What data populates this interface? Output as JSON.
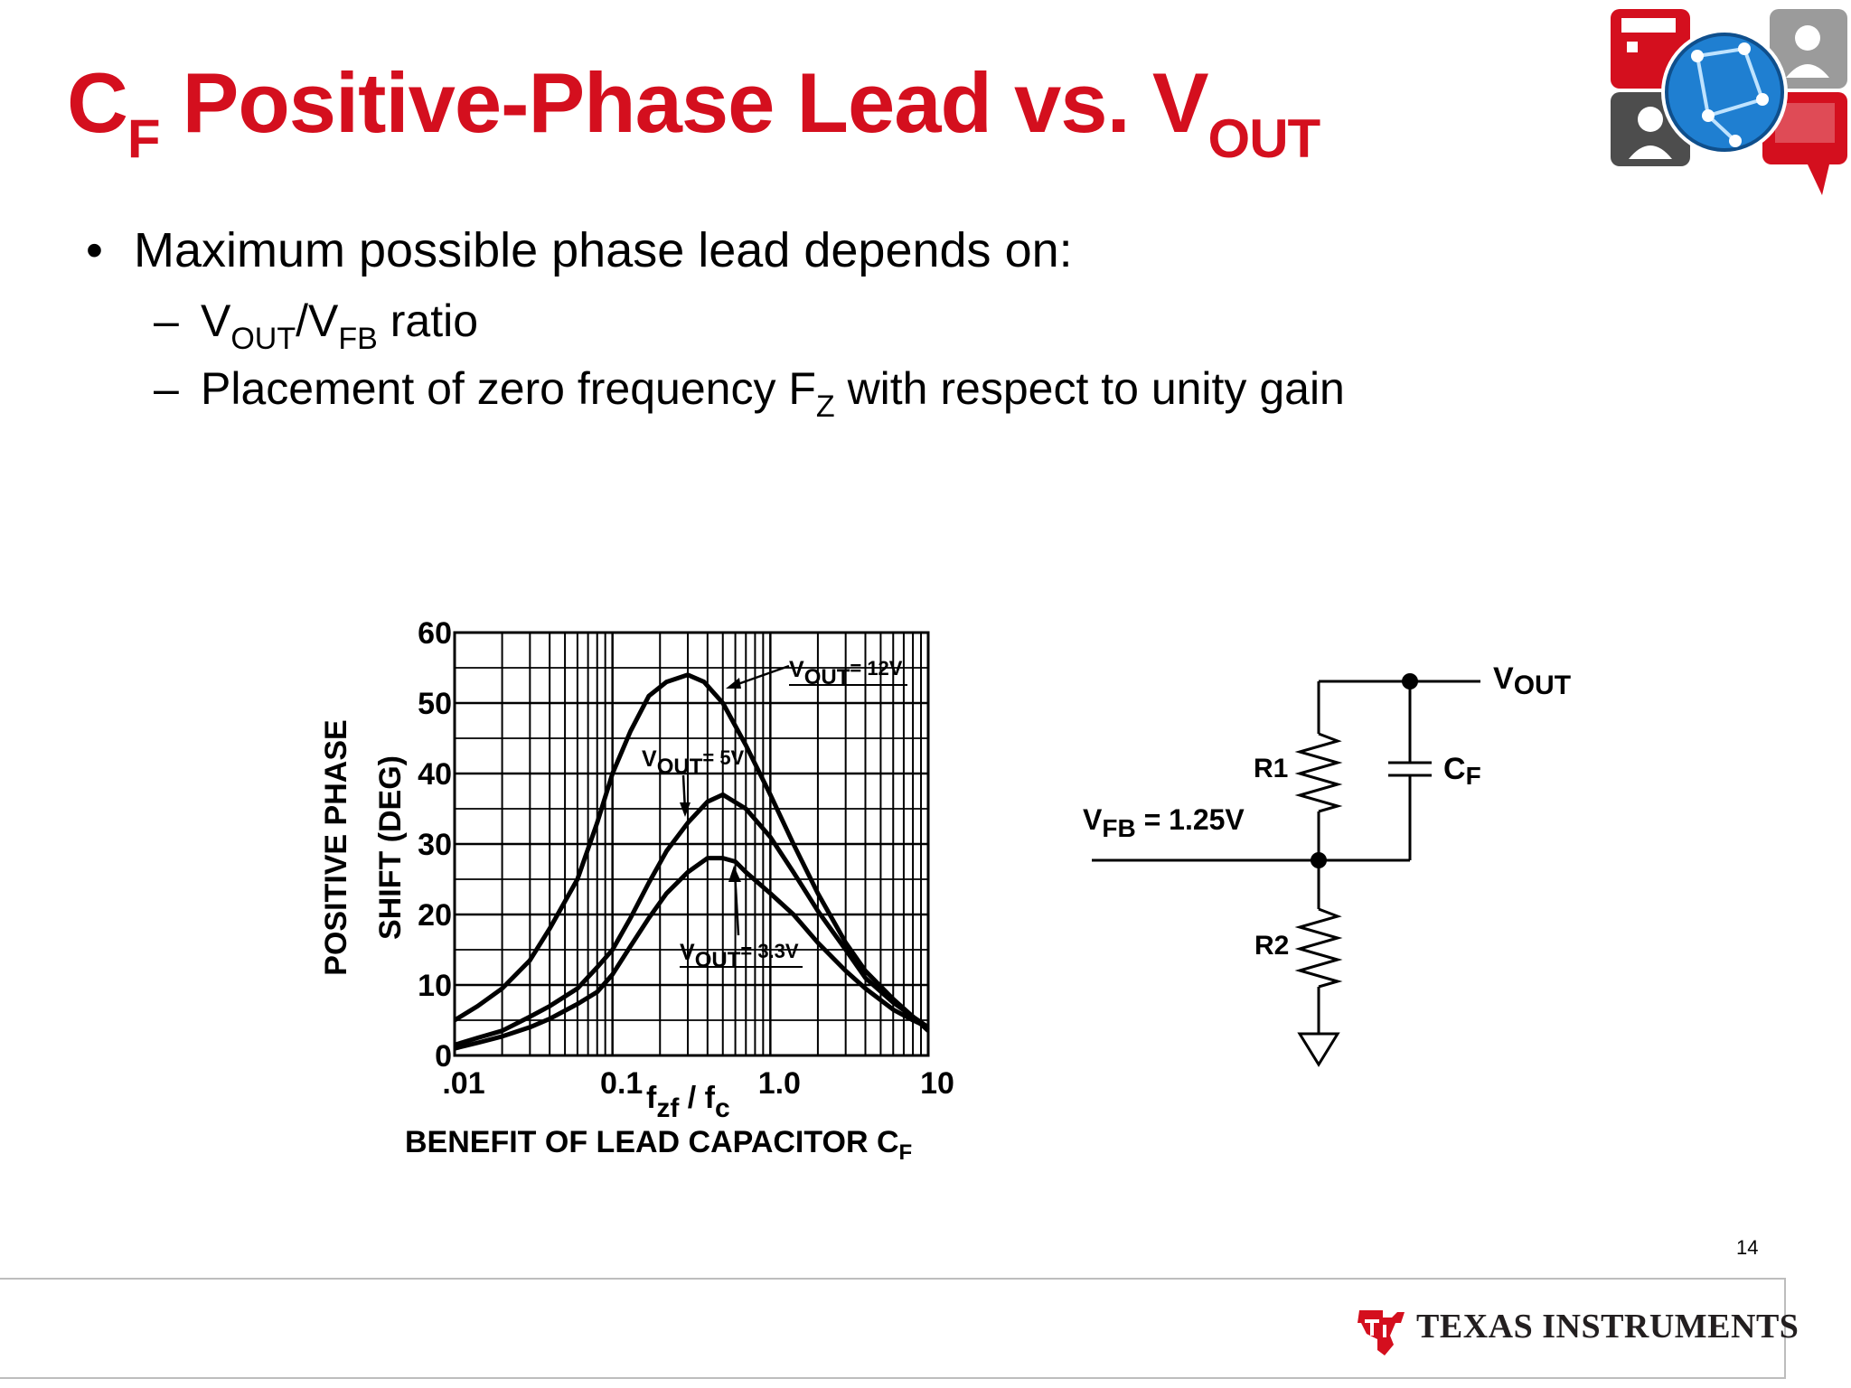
{
  "slide": {
    "title_main": "C",
    "title_sub1": "F",
    "title_mid": " Positive-Phase Lead vs. V",
    "title_sub2": "OUT",
    "bullet1": "Maximum possible phase lead depends on:",
    "bullet1_marker": "•",
    "sub_marker": "–",
    "sub1_v1": "V",
    "sub1_s1": "OUT",
    "sub1_v2": "/V",
    "sub1_s2": "FB",
    "sub1_rest": " ratio",
    "sub2_text": "Placement of zero frequency F",
    "sub2_sub": "Z",
    "sub2_rest": " with respect to unity gain",
    "slide_number": "14",
    "footer_brand": "Texas Instruments",
    "footer_brand_display": "TEXAS INSTRUMENTS",
    "brand_color": "#d40f1e"
  },
  "chart_data": {
    "type": "line",
    "x_scale": "log",
    "xlim": [
      0.01,
      10
    ],
    "ylim": [
      0,
      60
    ],
    "x_ticks": [
      ".01",
      "0.1",
      "1.0",
      "10"
    ],
    "y_ticks": [
      "0",
      "10",
      "20",
      "30",
      "40",
      "50",
      "60"
    ],
    "xlabel_main": "f",
    "xlabel_sub1": "zf",
    "xlabel_mid": " / f",
    "xlabel_sub2": "c",
    "caption_main": "BENEFIT OF LEAD CAPACITOR C",
    "caption_sub": "F",
    "ylabel_line1": "POSITIVE PHASE",
    "ylabel_line2": "SHIFT (DEG)",
    "grid": true,
    "series": [
      {
        "name": "VOUT= 12V",
        "label_v": "V",
        "label_sub": "OUT",
        "label_rest": "= 12V",
        "x": [
          0.01,
          0.014,
          0.02,
          0.03,
          0.04,
          0.06,
          0.08,
          0.1,
          0.13,
          0.17,
          0.22,
          0.3,
          0.38,
          0.5,
          0.7,
          1.0,
          1.4,
          2,
          3,
          4,
          6,
          8,
          10
        ],
        "y": [
          5,
          7,
          9.5,
          13.5,
          18,
          25,
          33,
          40,
          46,
          51,
          53,
          54,
          53,
          50,
          44,
          37,
          30,
          23,
          16,
          12,
          8,
          5.5,
          3.5
        ]
      },
      {
        "name": "VOUT= 5V",
        "label_v": "V",
        "label_sub": "OUT",
        "label_rest": "= 5V",
        "x": [
          0.01,
          0.014,
          0.02,
          0.03,
          0.04,
          0.06,
          0.08,
          0.1,
          0.13,
          0.17,
          0.22,
          0.3,
          0.4,
          0.5,
          0.7,
          1.0,
          1.4,
          2,
          3,
          4,
          6,
          8,
          10
        ],
        "y": [
          1.5,
          2.5,
          3.5,
          5.5,
          7,
          9.5,
          12.5,
          15,
          19.5,
          24.5,
          29,
          33,
          36,
          37,
          35,
          31,
          26,
          20.5,
          15,
          11,
          7.5,
          5.5,
          4
        ]
      },
      {
        "name": "VOUT= 3.3V",
        "label_v": "V",
        "label_sub": "OUT",
        "label_rest": "= 3.3V",
        "x": [
          0.01,
          0.014,
          0.02,
          0.03,
          0.04,
          0.06,
          0.08,
          0.1,
          0.13,
          0.17,
          0.22,
          0.3,
          0.4,
          0.5,
          0.6,
          0.7,
          1.0,
          1.4,
          2,
          3,
          4,
          6,
          8,
          10
        ],
        "y": [
          1,
          1.8,
          2.7,
          4,
          5.2,
          7.3,
          9,
          11.5,
          15.5,
          19.5,
          23,
          26,
          28,
          28,
          27.5,
          26,
          23,
          20,
          16,
          12,
          9.5,
          6.5,
          5,
          4
        ]
      }
    ]
  },
  "circuit": {
    "vout_v": "V",
    "vout_sub": "OUT",
    "vfb_v": "V",
    "vfb_sub": "FB",
    "vfb_rest": " = 1.25V",
    "r1": "R1",
    "r2": "R2",
    "cf_c": "C",
    "cf_sub": "F"
  }
}
